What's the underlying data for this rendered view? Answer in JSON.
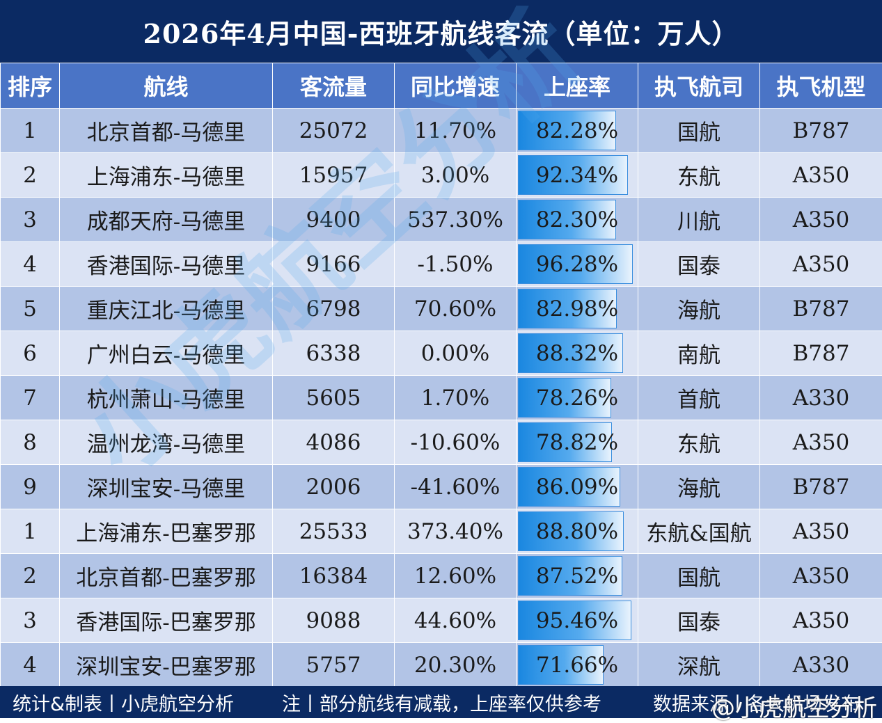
{
  "title": "2026年4月中国-西班牙航线客流（单位：万人）",
  "headers": [
    "排序",
    "航线",
    "客流量",
    "同比增速",
    "上座率",
    "执飞航司",
    "执飞机型"
  ],
  "rows": [
    {
      "rank": "1",
      "route": "北京首都-马德里",
      "traffic": "25072",
      "yoy": "11.70%",
      "load": "82.28%",
      "load_value": 82.28,
      "airline": "国航",
      "aircraft": "B787"
    },
    {
      "rank": "2",
      "route": "上海浦东-马德里",
      "traffic": "15957",
      "yoy": "3.00%",
      "load": "92.34%",
      "load_value": 92.34,
      "airline": "东航",
      "aircraft": "A350"
    },
    {
      "rank": "3",
      "route": "成都天府-马德里",
      "traffic": "9400",
      "yoy": "537.30%",
      "load": "82.30%",
      "load_value": 82.3,
      "airline": "川航",
      "aircraft": "A350"
    },
    {
      "rank": "4",
      "route": "香港国际-马德里",
      "traffic": "9166",
      "yoy": "-1.50%",
      "load": "96.28%",
      "load_value": 96.28,
      "airline": "国泰",
      "aircraft": "A350"
    },
    {
      "rank": "5",
      "route": "重庆江北-马德里",
      "traffic": "6798",
      "yoy": "70.60%",
      "load": "82.98%",
      "load_value": 82.98,
      "airline": "海航",
      "aircraft": "B787"
    },
    {
      "rank": "6",
      "route": "广州白云-马德里",
      "traffic": "6338",
      "yoy": "0.00%",
      "load": "88.32%",
      "load_value": 88.32,
      "airline": "南航",
      "aircraft": "B787"
    },
    {
      "rank": "7",
      "route": "杭州萧山-马德里",
      "traffic": "5605",
      "yoy": "1.70%",
      "load": "78.26%",
      "load_value": 78.26,
      "airline": "首航",
      "aircraft": "A330"
    },
    {
      "rank": "8",
      "route": "温州龙湾-马德里",
      "traffic": "4086",
      "yoy": "-10.60%",
      "load": "78.82%",
      "load_value": 78.82,
      "airline": "东航",
      "aircraft": "A350"
    },
    {
      "rank": "9",
      "route": "深圳宝安-马德里",
      "traffic": "2006",
      "yoy": "-41.60%",
      "load": "86.09%",
      "load_value": 86.09,
      "airline": "海航",
      "aircraft": "B787"
    },
    {
      "rank": "1",
      "route": "上海浦东-巴塞罗那",
      "traffic": "25533",
      "yoy": "373.40%",
      "load": "88.80%",
      "load_value": 88.8,
      "airline": "东航&国航",
      "aircraft": "A350"
    },
    {
      "rank": "2",
      "route": "北京首都-巴塞罗那",
      "traffic": "16384",
      "yoy": "12.60%",
      "load": "87.52%",
      "load_value": 87.52,
      "airline": "国航",
      "aircraft": "A350"
    },
    {
      "rank": "3",
      "route": "香港国际-巴塞罗那",
      "traffic": "9088",
      "yoy": "44.60%",
      "load": "95.46%",
      "load_value": 95.46,
      "airline": "国泰",
      "aircraft": "A350"
    },
    {
      "rank": "4",
      "route": "深圳宝安-巴塞罗那",
      "traffic": "5757",
      "yoy": "20.30%",
      "load": "71.66%",
      "load_value": 71.66,
      "airline": "深航",
      "aircraft": "A330"
    }
  ],
  "watermark": "小虎航空分析",
  "footer": {
    "left": "统计&制表丨小虎航空分析",
    "middle": "注丨部分航线有减载，上座率仅供参考",
    "right": "数据来源丨各大机场发布"
  },
  "weibo_mark": "@小虎航空分析",
  "colors": {
    "header_bg": "#0b2a63",
    "column_header_bg": "#4a74c6",
    "row_odd": "#b2c4e6",
    "row_even": "#dbe3f4",
    "bar": "#1a87e0"
  }
}
